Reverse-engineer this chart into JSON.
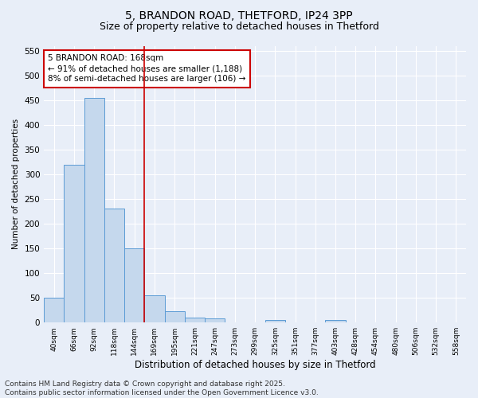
{
  "title_line1": "5, BRANDON ROAD, THETFORD, IP24 3PP",
  "title_line2": "Size of property relative to detached houses in Thetford",
  "xlabel": "Distribution of detached houses by size in Thetford",
  "ylabel": "Number of detached properties",
  "categories": [
    "40sqm",
    "66sqm",
    "92sqm",
    "118sqm",
    "144sqm",
    "169sqm",
    "195sqm",
    "221sqm",
    "247sqm",
    "273sqm",
    "299sqm",
    "325sqm",
    "351sqm",
    "377sqm",
    "403sqm",
    "428sqm",
    "454sqm",
    "480sqm",
    "506sqm",
    "532sqm",
    "558sqm"
  ],
  "values": [
    50,
    320,
    455,
    230,
    150,
    55,
    23,
    10,
    8,
    0,
    0,
    5,
    0,
    0,
    5,
    0,
    0,
    0,
    0,
    0,
    0
  ],
  "bar_color": "#c5d8ed",
  "bar_edge_color": "#5b9bd5",
  "background_color": "#e8eef8",
  "grid_color": "#ffffff",
  "annotation_text": "5 BRANDON ROAD: 168sqm\n← 91% of detached houses are smaller (1,188)\n8% of semi-detached houses are larger (106) →",
  "annotation_box_color": "#ffffff",
  "annotation_box_edge_color": "#cc0000",
  "vline_x": 4.5,
  "vline_color": "#cc0000",
  "ylim": [
    0,
    560
  ],
  "yticks": [
    0,
    50,
    100,
    150,
    200,
    250,
    300,
    350,
    400,
    450,
    500,
    550
  ],
  "footer_text": "Contains HM Land Registry data © Crown copyright and database right 2025.\nContains public sector information licensed under the Open Government Licence v3.0.",
  "title_fontsize": 10,
  "subtitle_fontsize": 9,
  "annotation_fontsize": 7.5,
  "footer_fontsize": 6.5
}
